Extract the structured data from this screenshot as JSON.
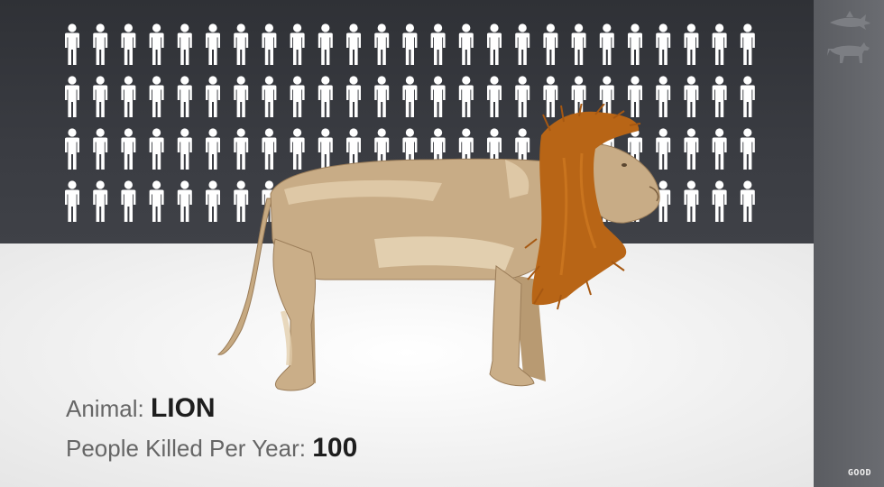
{
  "caption": {
    "animal_label": "Animal:",
    "animal_value": "LION",
    "killed_label": "People Killed Per Year:",
    "killed_value": "100"
  },
  "people_grid": {
    "count": 100,
    "rows": 4,
    "columns": 25,
    "color": "#ffffff"
  },
  "sidebar": {
    "icons": [
      "shark-icon",
      "wolf-icon"
    ],
    "brand": "GOOD"
  },
  "colors": {
    "background_top": "#36383d",
    "floor": "#f4f4f4",
    "lion_body": "#c8ac86",
    "lion_mane": "#b86516",
    "sidebar": "#616368"
  }
}
